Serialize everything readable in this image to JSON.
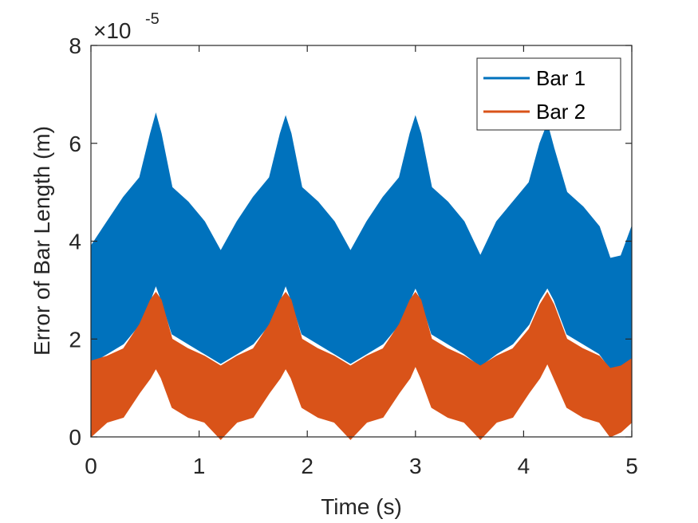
{
  "chart_data": {
    "type": "area",
    "xlabel": "Time (s)",
    "ylabel": "Error of Bar Length (m)",
    "y_exponent_base": "×10",
    "y_exponent_power": "-5",
    "xlim": [
      0,
      5
    ],
    "ylim": [
      0,
      8
    ],
    "x_ticks": [
      0,
      1,
      2,
      3,
      4,
      5
    ],
    "y_ticks": [
      0,
      2,
      4,
      6,
      8
    ],
    "grid": false,
    "legend_position": "top-right",
    "series": [
      {
        "name": "Bar 1",
        "color": "#0072BD",
        "x": [
          0,
          0.15,
          0.3,
          0.45,
          0.55,
          0.6,
          0.65,
          0.75,
          0.9,
          1.05,
          1.2,
          1.35,
          1.5,
          1.65,
          1.75,
          1.8,
          1.85,
          1.95,
          2.1,
          2.25,
          2.4,
          2.55,
          2.7,
          2.85,
          2.95,
          3.0,
          3.05,
          3.15,
          3.3,
          3.45,
          3.6,
          3.75,
          3.9,
          4.05,
          4.15,
          4.22,
          4.28,
          4.4,
          4.55,
          4.7,
          4.8,
          4.9,
          5.0
        ],
        "upper": [
          3.9,
          4.4,
          4.9,
          5.3,
          6.2,
          6.6,
          6.2,
          5.1,
          4.8,
          4.4,
          3.8,
          4.4,
          4.9,
          5.3,
          6.2,
          6.55,
          6.2,
          5.1,
          4.8,
          4.4,
          3.8,
          4.4,
          4.9,
          5.3,
          6.2,
          6.55,
          6.2,
          5.1,
          4.8,
          4.4,
          3.7,
          4.4,
          4.8,
          5.2,
          6.0,
          6.4,
          5.9,
          5.0,
          4.7,
          4.3,
          3.65,
          3.7,
          4.3
        ],
        "lower": [
          1.5,
          1.7,
          1.9,
          2.3,
          2.8,
          3.1,
          2.8,
          2.1,
          1.9,
          1.7,
          1.5,
          1.7,
          1.9,
          2.3,
          2.8,
          3.1,
          2.8,
          2.1,
          1.9,
          1.7,
          1.5,
          1.7,
          1.9,
          2.3,
          2.8,
          3.05,
          2.8,
          2.1,
          1.9,
          1.7,
          1.45,
          1.7,
          1.9,
          2.3,
          2.8,
          3.05,
          2.8,
          2.1,
          1.9,
          1.7,
          1.4,
          1.45,
          1.6
        ]
      },
      {
        "name": "Bar 2",
        "color": "#D95319",
        "x": [
          0,
          0.15,
          0.3,
          0.45,
          0.55,
          0.6,
          0.65,
          0.75,
          0.9,
          1.05,
          1.2,
          1.35,
          1.5,
          1.65,
          1.75,
          1.8,
          1.85,
          1.95,
          2.1,
          2.25,
          2.4,
          2.55,
          2.7,
          2.85,
          2.95,
          3.0,
          3.05,
          3.15,
          3.3,
          3.45,
          3.6,
          3.75,
          3.9,
          4.05,
          4.15,
          4.22,
          4.28,
          4.4,
          4.55,
          4.7,
          4.8,
          4.9,
          5.0
        ],
        "upper": [
          1.55,
          1.65,
          1.8,
          2.3,
          2.8,
          2.95,
          2.8,
          2.0,
          1.8,
          1.65,
          1.45,
          1.65,
          1.8,
          2.3,
          2.8,
          2.95,
          2.8,
          2.0,
          1.8,
          1.65,
          1.45,
          1.65,
          1.8,
          2.3,
          2.8,
          2.95,
          2.8,
          2.0,
          1.8,
          1.65,
          1.45,
          1.65,
          1.8,
          2.2,
          2.7,
          2.95,
          2.7,
          2.0,
          1.8,
          1.65,
          1.4,
          1.45,
          1.6
        ],
        "lower": [
          0.0,
          0.3,
          0.4,
          0.9,
          1.2,
          1.4,
          1.2,
          0.6,
          0.4,
          0.3,
          -0.05,
          0.3,
          0.4,
          0.9,
          1.2,
          1.4,
          1.2,
          0.6,
          0.4,
          0.3,
          -0.05,
          0.3,
          0.4,
          0.9,
          1.2,
          1.45,
          1.2,
          0.6,
          0.4,
          0.3,
          -0.05,
          0.3,
          0.4,
          0.9,
          1.2,
          1.5,
          1.2,
          0.6,
          0.4,
          0.3,
          0.0,
          0.1,
          0.3
        ]
      }
    ]
  }
}
